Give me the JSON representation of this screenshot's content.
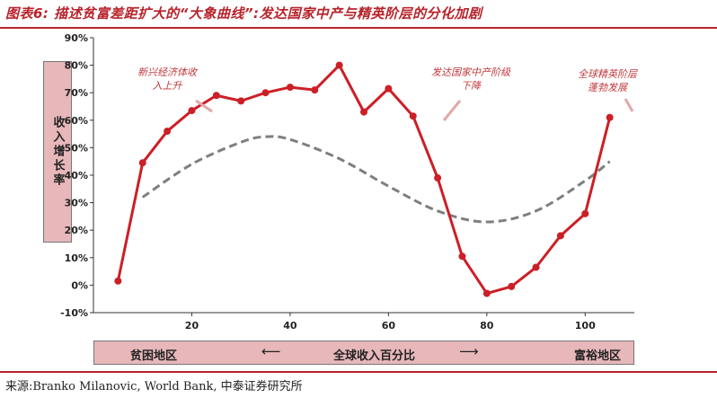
{
  "header": {
    "title": "图表6:  描述贫富差距扩大的“大象曲线”:发达国家中产与精英阶层的分化加剧"
  },
  "footer": {
    "source": "来源:Branko Milanovic, World Bank, 中泰证券研究所"
  },
  "band": {
    "left": "贫困地区",
    "center": "全球收入百分比",
    "right": "富裕地区",
    "arrow_left": "⟵",
    "arrow_right": "⟶"
  },
  "colors": {
    "accent": "#b8232b",
    "series": "#cc1f26",
    "trend": "#7f7f7f",
    "panel": "#e7b7b9"
  },
  "chart_data": {
    "type": "line",
    "ylabel": "收入增长率",
    "xlim": [
      0,
      110
    ],
    "ylim": [
      -10,
      90
    ],
    "x_ticks": [
      "20",
      "40",
      "60",
      "80",
      "100"
    ],
    "x_tick_values": [
      20,
      40,
      60,
      80,
      100
    ],
    "y_ticks": [
      "-10%",
      "0%",
      "10%",
      "20%",
      "30%",
      "40%",
      "50%",
      "60%",
      "70%",
      "80%",
      "90%"
    ],
    "y_tick_values": [
      -10,
      0,
      10,
      20,
      30,
      40,
      50,
      60,
      70,
      80,
      90
    ],
    "grid": false,
    "series": [
      {
        "style": "solid line with markers",
        "x": [
          5,
          10,
          15,
          20,
          25,
          30,
          35,
          40,
          45,
          50,
          55,
          60,
          65,
          70,
          75,
          80,
          85,
          90,
          95,
          100,
          105
        ],
        "y": [
          1.5,
          44.5,
          56,
          63.5,
          69,
          67,
          70,
          72,
          71,
          80,
          63,
          71.5,
          61.5,
          39,
          10.5,
          -3,
          -0.5,
          6.5,
          18,
          26,
          61
        ]
      },
      {
        "style": "dashed trend curve",
        "x": [
          10,
          20,
          30,
          35,
          40,
          50,
          60,
          70,
          80,
          90,
          100,
          105
        ],
        "y": [
          32,
          44,
          52,
          54,
          53,
          46,
          36,
          27,
          23,
          27,
          38,
          45
        ]
      }
    ],
    "annotations": [
      {
        "lines": [
          "新兴经济体收",
          "入上升"
        ]
      },
      {
        "lines": [
          "发达国家中产阶级",
          "下降"
        ]
      },
      {
        "lines": [
          "全球精英阶层",
          "蓬勃发展"
        ]
      }
    ]
  }
}
